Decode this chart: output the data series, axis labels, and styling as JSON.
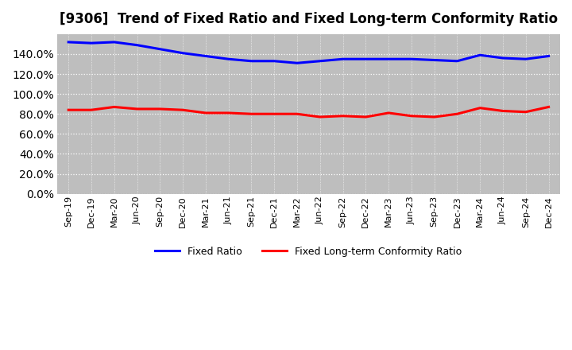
{
  "title": "[9306]  Trend of Fixed Ratio and Fixed Long-term Conformity Ratio",
  "labels": [
    "Sep-19",
    "Dec-19",
    "Mar-20",
    "Jun-20",
    "Sep-20",
    "Dec-20",
    "Mar-21",
    "Jun-21",
    "Sep-21",
    "Dec-21",
    "Mar-22",
    "Jun-22",
    "Sep-22",
    "Dec-22",
    "Mar-23",
    "Jun-23",
    "Sep-23",
    "Dec-23",
    "Mar-24",
    "Jun-24",
    "Sep-24",
    "Dec-24"
  ],
  "fixed_ratio": [
    152,
    151,
    152,
    149,
    145,
    141,
    138,
    135,
    133,
    133,
    131,
    133,
    135,
    135,
    135,
    135,
    134,
    133,
    139,
    136,
    135,
    138
  ],
  "fixed_lt_ratio": [
    84,
    84,
    87,
    85,
    85,
    84,
    81,
    81,
    80,
    80,
    80,
    77,
    78,
    77,
    81,
    78,
    77,
    80,
    86,
    83,
    82,
    87
  ],
  "fixed_ratio_color": "#0000FF",
  "fixed_lt_ratio_color": "#FF0000",
  "ylim": [
    0,
    160
  ],
  "yticks": [
    0,
    20,
    40,
    60,
    80,
    100,
    120,
    140
  ],
  "background_color": "#FFFFFF",
  "plot_bg_color": "#BEBEBE",
  "legend_fixed_ratio": "Fixed Ratio",
  "legend_fixed_lt_ratio": "Fixed Long-term Conformity Ratio",
  "title_fontsize": 12,
  "tick_fontsize": 8,
  "legend_fontsize": 9
}
